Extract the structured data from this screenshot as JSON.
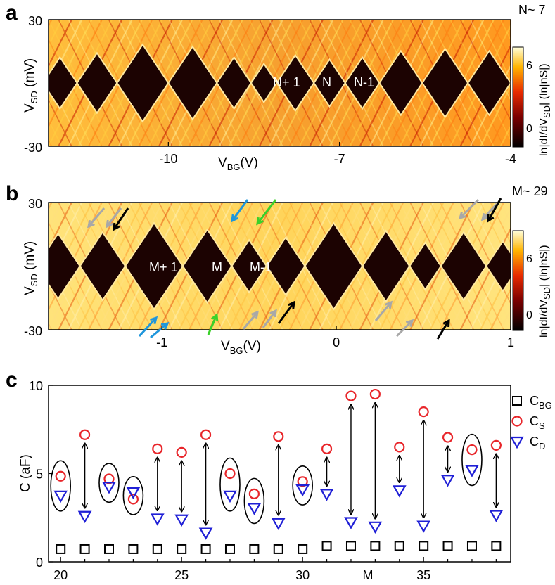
{
  "panels": {
    "a": {
      "letter": "a",
      "corner": "N~ 7",
      "xticks": [
        -10,
        -7,
        -4
      ],
      "yticks": [
        30,
        -30
      ],
      "xlim": [
        -12.1,
        -4
      ],
      "ylim": [
        -30,
        30
      ],
      "xlabel_main": "V",
      "xlabel_sub": "BG",
      "xlabel_tail": "(V)",
      "ylabel_main": "V",
      "ylabel_sub": "SD",
      "ylabel_tail": " (mV)",
      "region_labels": [
        "N+ 1",
        "N",
        "N-1"
      ],
      "colorbar_label": "ln|dI/dV",
      "colorbar_label_sub": "SD",
      "colorbar_label_tail": "|  (ln|nS|)",
      "colorbar_ticks": [
        6,
        0
      ]
    },
    "b": {
      "letter": "b",
      "corner": "M~ 29",
      "xticks": [
        -1,
        0,
        1
      ],
      "yticks": [
        30,
        -30
      ],
      "xlim": [
        -1.65,
        1
      ],
      "ylim": [
        -30,
        30
      ],
      "xlabel_main": "V",
      "xlabel_sub": "BG",
      "xlabel_tail": "(V)",
      "ylabel_main": "V",
      "ylabel_sub": "SD",
      "ylabel_tail": " (mV)",
      "region_labels": [
        "M+ 1",
        "M",
        "M-1"
      ],
      "colorbar_label": "ln|dI/dV",
      "colorbar_label_sub": "SD",
      "colorbar_label_tail": "|  (ln|nS|)",
      "colorbar_ticks": [
        6,
        0
      ]
    },
    "c": {
      "letter": "c"
    }
  },
  "colors": {
    "cs": "#e8252a",
    "cd": "#1f1fd6",
    "cbg": "#000000",
    "arrow_blue": "#1e96dc",
    "arrow_green": "#3ad12a",
    "arrow_gray": "#a8a8a8",
    "arrow_black": "#000000"
  },
  "chart_data": {
    "type": "scatter",
    "title": "",
    "xlabel": "M",
    "ylabel": "C (aF)",
    "xlim": [
      19.5,
      38.6
    ],
    "ylim": [
      0,
      10
    ],
    "xticks": [
      20,
      25,
      30,
      35
    ],
    "yticks": [
      0,
      5,
      10
    ],
    "legend": {
      "placement": "top-right",
      "entries": [
        {
          "main": "C",
          "sub": "BG",
          "marker": "square"
        },
        {
          "main": "C",
          "sub": "S",
          "marker": "circle"
        },
        {
          "main": "C",
          "sub": "D",
          "marker": "triangle"
        }
      ]
    },
    "x": [
      20,
      21,
      22,
      23,
      24,
      25,
      26,
      27,
      28,
      29,
      30,
      31,
      32,
      33,
      34,
      35,
      36,
      37,
      38
    ],
    "series": [
      {
        "name": "C_BG",
        "values": [
          0.72,
          0.72,
          0.72,
          0.72,
          0.72,
          0.72,
          0.72,
          0.72,
          0.72,
          0.72,
          0.72,
          0.9,
          0.9,
          0.9,
          0.9,
          0.9,
          0.9,
          0.9,
          0.9
        ]
      },
      {
        "name": "C_S",
        "values": [
          4.85,
          7.2,
          4.7,
          3.55,
          6.4,
          6.2,
          7.2,
          5.0,
          3.85,
          7.1,
          4.55,
          6.4,
          9.4,
          9.5,
          6.5,
          8.5,
          7.05,
          6.35,
          6.6
        ]
      },
      {
        "name": "C_D",
        "values": [
          3.75,
          2.6,
          4.25,
          3.95,
          2.45,
          2.4,
          1.65,
          3.75,
          3.05,
          2.2,
          4.1,
          3.85,
          2.25,
          2.0,
          4.05,
          2.05,
          4.65,
          5.2,
          2.65
        ]
      }
    ],
    "annotations": {
      "ellipses_at_x": [
        20,
        22,
        23,
        27,
        28,
        30,
        37
      ],
      "double_arrows_at_x": [
        21,
        24,
        25,
        26,
        29,
        31,
        32,
        33,
        34,
        35,
        36,
        38
      ]
    }
  }
}
